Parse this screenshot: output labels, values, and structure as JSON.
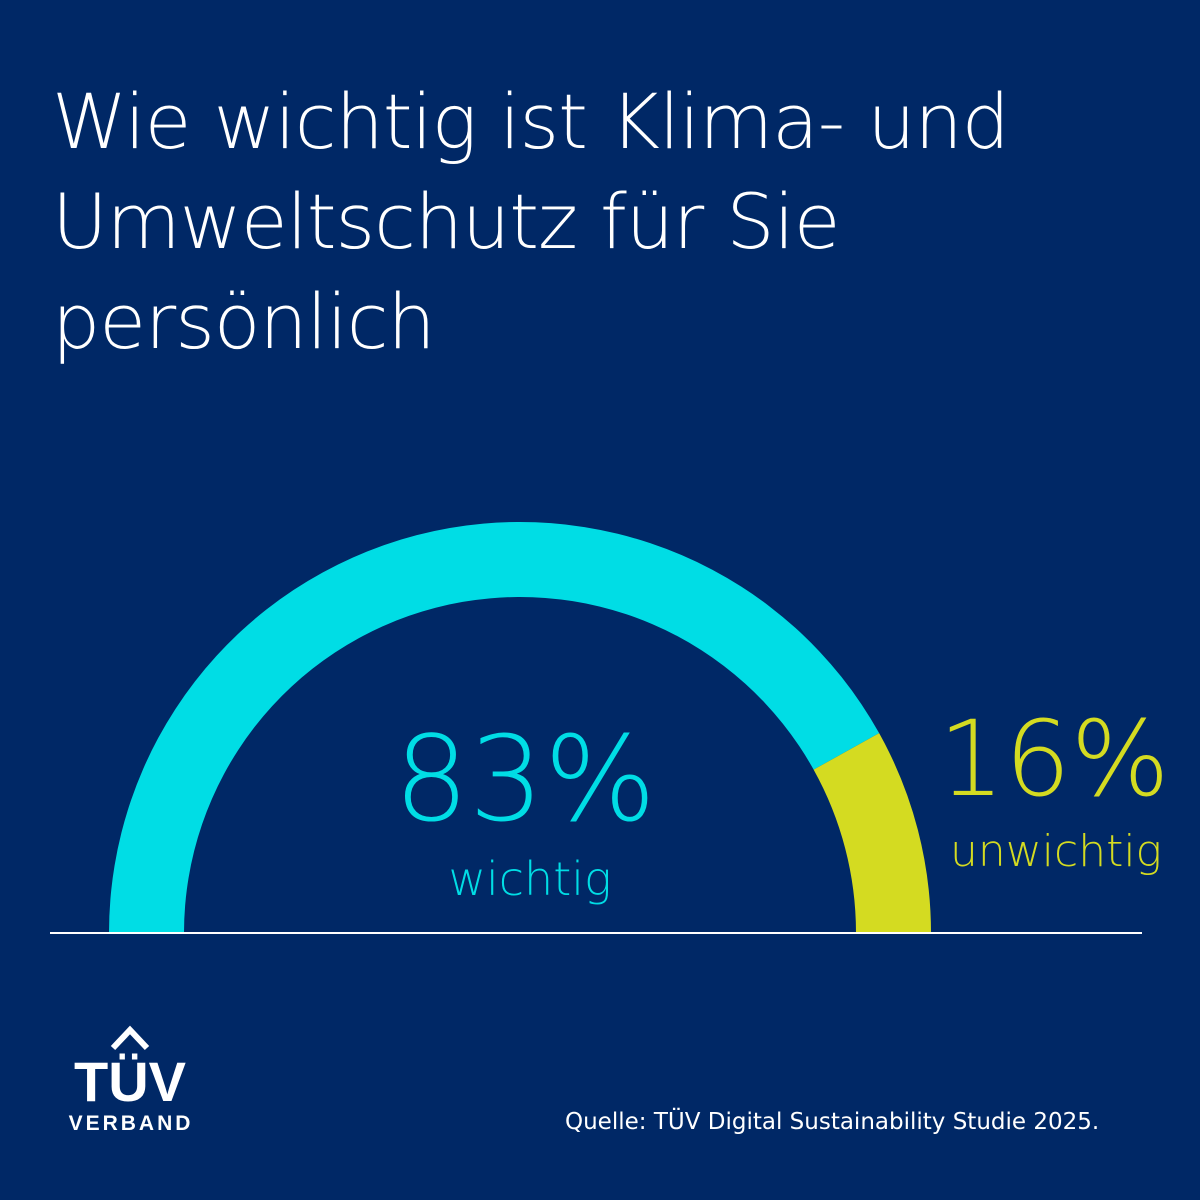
{
  "title": "Wie wichtig ist Klima- und Umweltschutz für Sie persönlich",
  "chart_data": {
    "type": "pie",
    "subtype": "half-donut gauge",
    "slices": [
      {
        "label": "wichtig",
        "value": 83,
        "value_label": "83%",
        "color": "#00DDE5"
      },
      {
        "label": "unwichtig",
        "value": 16,
        "value_label": "16%",
        "color": "#D4DB21"
      }
    ]
  },
  "logo": {
    "brand": "TÜV",
    "sub": "VERBAND"
  },
  "source": "Quelle: TÜV Digital Sustainability Studie 2025."
}
